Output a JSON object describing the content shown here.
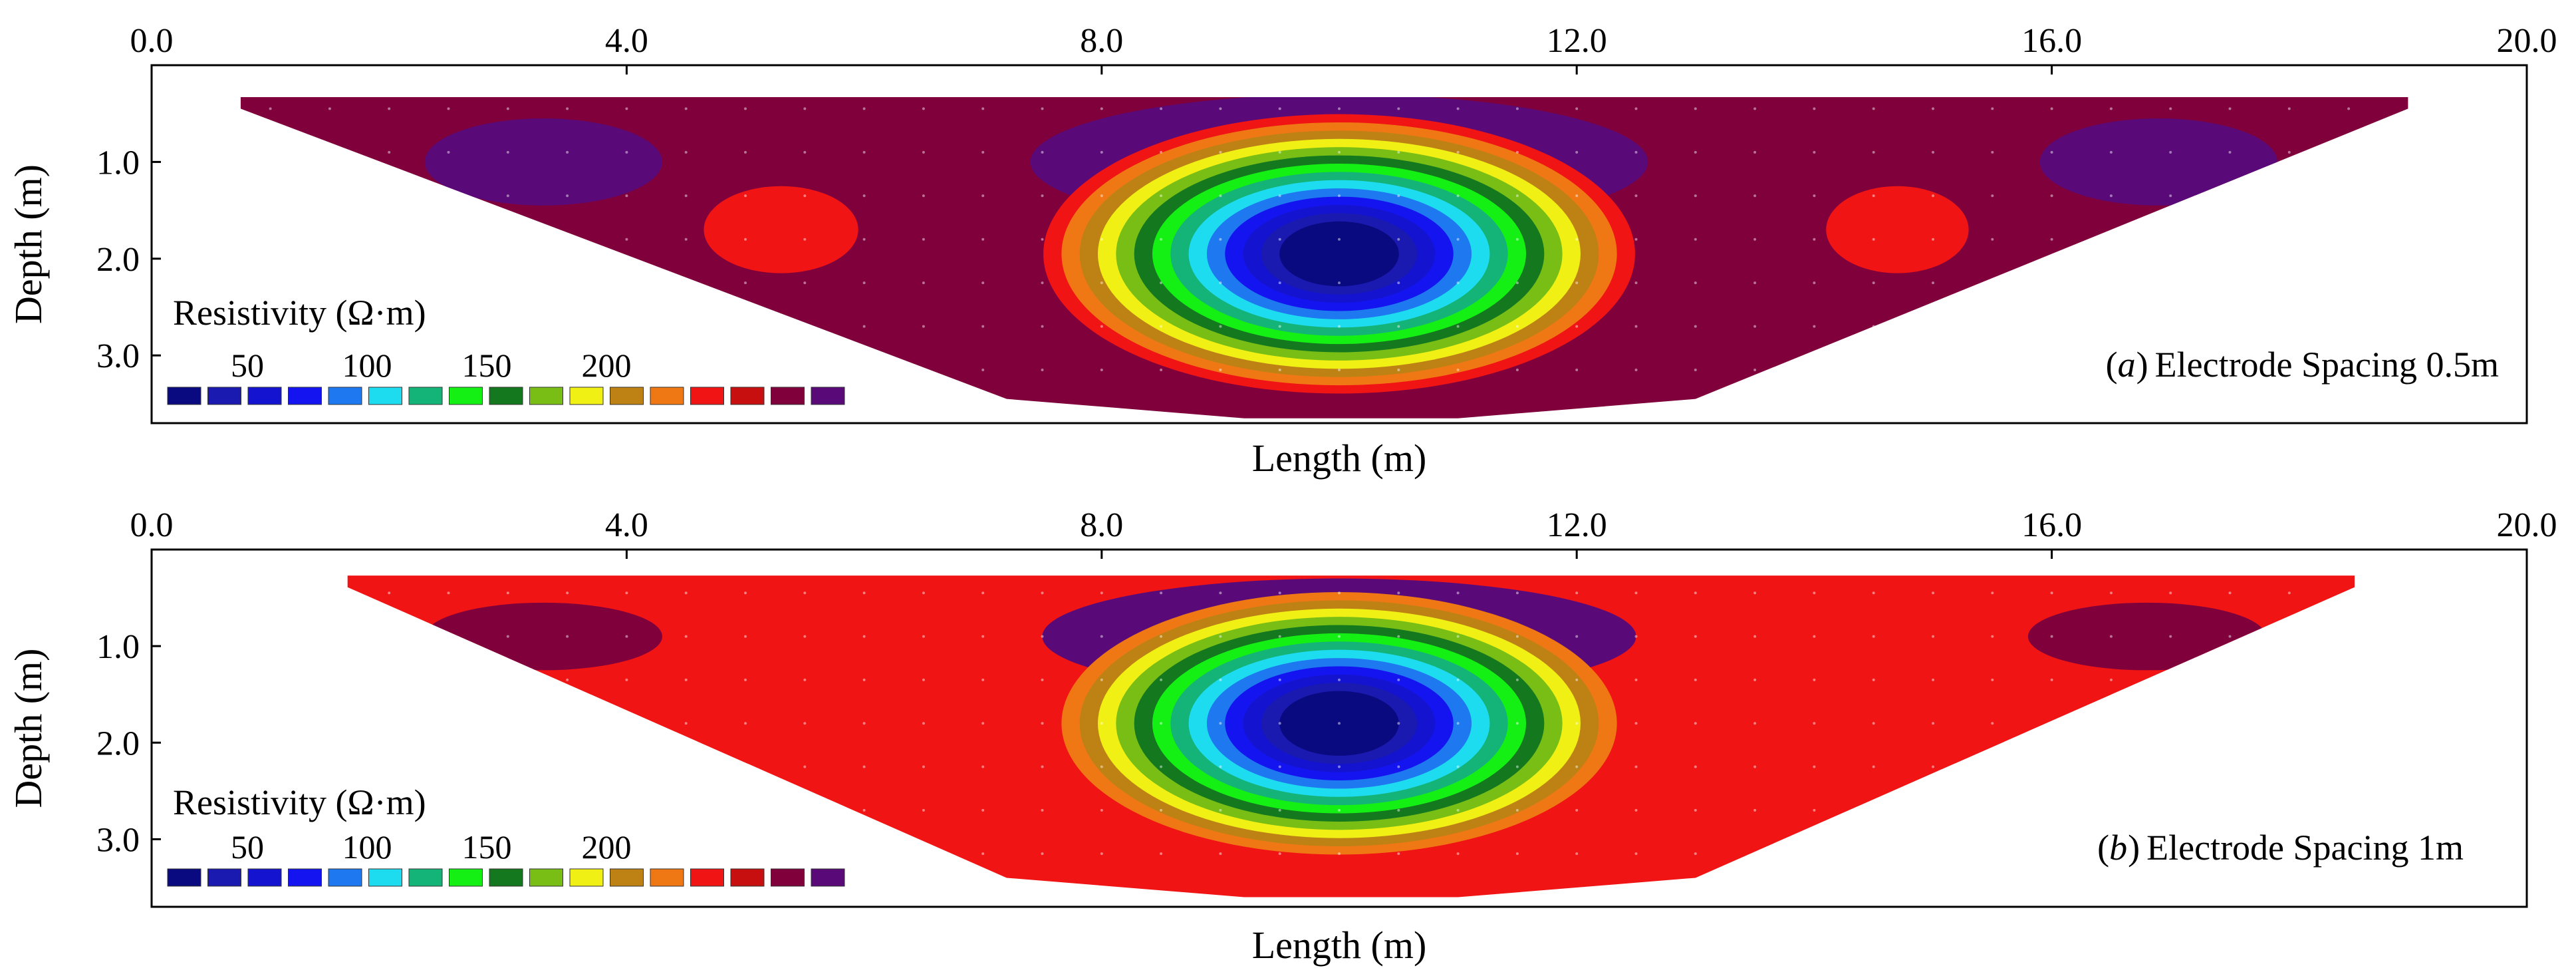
{
  "chart_data": [
    {
      "type": "heatmap",
      "subtype": "resistivity-pseudosection-contour",
      "panel_letter": "a",
      "caption": "Electrode Spacing 0.5m",
      "xlabel": "Length (m)",
      "ylabel": "Depth (m)",
      "xlim": [
        0,
        20
      ],
      "ylim": [
        3.7,
        0
      ],
      "x_ticks": [
        "0.0",
        "4.0",
        "8.0",
        "12.0",
        "16.0",
        "20.0"
      ],
      "y_ticks": [
        "1.0",
        "2.0",
        "3.0"
      ],
      "section_outline": {
        "top_x_range": [
          0.75,
          19.0
        ],
        "top_depth": 0.33,
        "bottom_x_range": [
          9.2,
          11.0
        ],
        "bottom_depth": 3.65
      },
      "background_resistivity": 225,
      "anomaly": {
        "center_x": 10.0,
        "center_depth": 1.95,
        "min_resistivity": 12,
        "description": "low-resistivity body"
      },
      "colorbar": {
        "title": "Resistivity (Ω·m)",
        "tick_labels": [
          "50",
          "100",
          "150",
          "200"
        ],
        "levels": [
          0,
          15,
          30,
          45,
          60,
          75,
          90,
          105,
          120,
          135,
          150,
          165,
          180,
          195,
          210,
          225,
          240
        ],
        "colors": [
          "#0a0a80",
          "#1a1ab0",
          "#1414d0",
          "#1414f0",
          "#1e78f0",
          "#1edcf0",
          "#14b478",
          "#14f014",
          "#14781e",
          "#78be14",
          "#f0f014",
          "#be8214",
          "#f07814",
          "#f01414",
          "#c80f0f",
          "#80003c",
          "#5a0a78"
        ]
      }
    },
    {
      "type": "heatmap",
      "subtype": "resistivity-pseudosection-contour",
      "panel_letter": "b",
      "caption": "Electrode Spacing 1m",
      "xlabel": "Length (m)",
      "ylabel": "Depth (m)",
      "xlim": [
        0,
        20
      ],
      "ylim": [
        3.7,
        0
      ],
      "x_ticks": [
        "0.0",
        "4.0",
        "8.0",
        "12.0",
        "16.0",
        "20.0"
      ],
      "y_ticks": [
        "1.0",
        "2.0",
        "3.0"
      ],
      "section_outline": {
        "top_x_range": [
          1.65,
          18.55
        ],
        "top_depth": 0.27,
        "bottom_x_range": [
          9.2,
          11.0
        ],
        "bottom_depth": 3.6
      },
      "background_resistivity": 205,
      "anomaly": {
        "center_x": 10.0,
        "center_depth": 1.8,
        "min_resistivity": 12,
        "description": "low-resistivity body"
      },
      "colorbar": {
        "title": "Resistivity (Ω·m)",
        "tick_labels": [
          "50",
          "100",
          "150",
          "200"
        ],
        "levels": [
          0,
          15,
          30,
          45,
          60,
          75,
          90,
          105,
          120,
          135,
          150,
          165,
          180,
          195,
          210,
          225,
          240
        ],
        "colors": [
          "#0a0a80",
          "#1a1ab0",
          "#1414d0",
          "#1414f0",
          "#1e78f0",
          "#1edcf0",
          "#14b478",
          "#14f014",
          "#14781e",
          "#78be14",
          "#f0f014",
          "#be8214",
          "#f07814",
          "#f01414",
          "#c80f0f",
          "#80003c",
          "#5a0a78"
        ]
      }
    }
  ]
}
